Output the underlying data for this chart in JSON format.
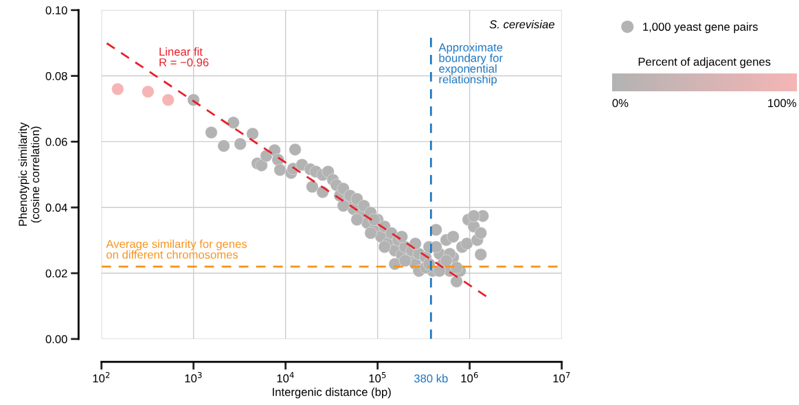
{
  "chart_data": {
    "type": "scatter",
    "xlabel": "Intergenic distance (bp)",
    "ylabel": "Phenotypic similarity\n(cosine correlation)",
    "clabel": "Percent of adjacent genes",
    "annotations": [
      "S. cerevisiae",
      "380 kb"
    ],
    "log": "x",
    "grid": true,
    "legend": "top right",
    "xlim": [
      100,
      10000000
    ],
    "ylim": [
      0,
      0.1
    ],
    "xticks": [
      {
        "value": 100,
        "label": "10$^{2}$"
      },
      {
        "value": 1000,
        "label": "10$^{3}$"
      },
      {
        "value": 10000,
        "label": "10$^{4}$"
      },
      {
        "value": 100000,
        "label": "10$^{5}$"
      },
      {
        "value": 1000000,
        "label": "10$^{6}$"
      },
      {
        "value": 10000000,
        "label": "10$^{7}$"
      }
    ],
    "yticks": [
      {
        "value": 0,
        "label": "0.00"
      },
      {
        "value": 0.02,
        "label": "0.02"
      },
      {
        "value": 0.04,
        "label": "0.04"
      },
      {
        "value": 0.06,
        "label": "0.06"
      },
      {
        "value": 0.08,
        "label": "0.08"
      },
      {
        "value": 0.1,
        "label": "0.10"
      }
    ],
    "clim": [
      0,
      100
    ],
    "cticks": [
      {
        "value": 0,
        "label": "0%"
      },
      {
        "value": 100,
        "label": "100%"
      }
    ],
    "ref_lines": [
      {
        "axis": "y",
        "value": 0.022,
        "label": "Average similarity for genes\non different chromosomes",
        "color": "#f7941d",
        "line_style": "dashed"
      },
      {
        "axis": "x",
        "value": 380000,
        "label": "Approximate\nboundary for\nexponential\nrelationship",
        "color": "#1f78c1",
        "line_style": "dashed"
      }
    ],
    "series": [
      {
        "name": "1,000 yeast gene pairs",
        "marker": "circle",
        "colors": [
          "#f5b5b5",
          "#f5b5b5",
          "#f5b5b5",
          "#b3b3b3",
          "#b3b3b3",
          "#b3b3b3",
          "#b3b3b3",
          "#b3b3b3",
          "#b3b3b3",
          "#b3b3b3",
          "#b3b3b3",
          "#b3b3b3",
          "#b3b3b3",
          "#b3b3b3",
          "#b3b3b3",
          "#b3b3b3",
          "#b3b3b3",
          "#b3b3b3",
          "#b3b3b3",
          "#b3b3b3",
          "#b3b3b3",
          "#b3b3b3",
          "#b3b3b3",
          "#b3b3b3",
          "#b3b3b3",
          "#b3b3b3",
          "#b3b3b3",
          "#b3b3b3",
          "#b3b3b3",
          "#b3b3b3",
          "#b3b3b3",
          "#b3b3b3",
          "#b3b3b3",
          "#b3b3b3",
          "#b3b3b3",
          "#b3b3b3",
          "#b3b3b3",
          "#b3b3b3",
          "#b3b3b3",
          "#b3b3b3",
          "#b3b3b3",
          "#b3b3b3",
          "#b3b3b3",
          "#b3b3b3",
          "#b3b3b3",
          "#b3b3b3",
          "#b3b3b3",
          "#b3b3b3",
          "#b3b3b3",
          "#b3b3b3",
          "#b3b3b3",
          "#b3b3b3",
          "#b3b3b3",
          "#b3b3b3",
          "#b3b3b3",
          "#b3b3b3",
          "#b3b3b3",
          "#b3b3b3",
          "#b3b3b3",
          "#b3b3b3",
          "#b3b3b3",
          "#b3b3b3",
          "#b3b3b3",
          "#b3b3b3",
          "#b3b3b3",
          "#b3b3b3",
          "#b3b3b3",
          "#b3b3b3",
          "#b3b3b3",
          "#b3b3b3",
          "#b3b3b3",
          "#b3b3b3",
          "#b3b3b3",
          "#b3b3b3",
          "#b3b3b3",
          "#b3b3b3",
          "#b3b3b3",
          "#b3b3b3",
          "#b3b3b3",
          "#b3b3b3",
          "#b3b3b3",
          "#b3b3b3",
          "#b3b3b3",
          "#b3b3b3",
          "#b3b3b3",
          "#b3b3b3",
          "#b3b3b3",
          "#b3b3b3",
          "#b3b3b3"
        ],
        "x": [
          150,
          320,
          530,
          1000,
          1560,
          2130,
          2710,
          3220,
          4380,
          4940,
          5480,
          6180,
          7600,
          8280,
          8710,
          11500,
          12700,
          12100,
          15100,
          18600,
          21300,
          25300,
          29000,
          32700,
          19500,
          25300,
          35700,
          38900,
          42400,
          46200,
          50200,
          54800,
          59700,
          65000,
          71000,
          77300,
          84200,
          91800,
          100000,
          109000,
          119000,
          129000,
          141000,
          154000,
          167000,
          183000,
          199000,
          217000,
          236000,
          257000,
          281000,
          333000,
          363000,
          396000,
          431000,
          470000,
          512000,
          557000,
          608000,
          662000,
          721000,
          787000,
          828000,
          933000,
          966000,
          1110000,
          1210000,
          1320000,
          1390000,
          1110000,
          1320000,
          154000,
          199000,
          281000,
          333000,
          470000,
          608000,
          431000,
          721000,
          84200,
          59700,
          42400,
          119000,
          91800,
          183000,
          257000,
          363000,
          557000,
          662000
        ],
        "values": [
          0.076,
          0.0752,
          0.0727,
          0.0727,
          0.0628,
          0.0587,
          0.0658,
          0.0593,
          0.0624,
          0.0534,
          0.0528,
          0.0557,
          0.0574,
          0.0545,
          0.0514,
          0.0505,
          0.0576,
          0.0518,
          0.053,
          0.0516,
          0.0509,
          0.0499,
          0.0509,
          0.0484,
          0.0463,
          0.0447,
          0.0468,
          0.0436,
          0.0457,
          0.0415,
          0.0436,
          0.0395,
          0.0426,
          0.0374,
          0.0405,
          0.0353,
          0.0384,
          0.0332,
          0.0363,
          0.0311,
          0.0342,
          0.029,
          0.0322,
          0.0269,
          0.0301,
          0.0255,
          0.028,
          0.0242,
          0.0269,
          0.0228,
          0.0259,
          0.0248,
          0.028,
          0.0207,
          0.0332,
          0.0259,
          0.0228,
          0.0301,
          0.0207,
          0.0248,
          0.0175,
          0.0207,
          0.028,
          0.029,
          0.0363,
          0.0342,
          0.0301,
          0.0257,
          0.0374,
          0.0374,
          0.0322,
          0.0228,
          0.0238,
          0.0207,
          0.0217,
          0.0207,
          0.0259,
          0.028,
          0.0217,
          0.0322,
          0.0363,
          0.0405,
          0.028,
          0.0363,
          0.0311,
          0.029,
          0.0228,
          0.0238,
          0.0311
        ],
        "cvalues": [
          100,
          100,
          100,
          0,
          0,
          0,
          0,
          0,
          0,
          0,
          0,
          0,
          0,
          0,
          0,
          0,
          0,
          0,
          0,
          0,
          0,
          0,
          0,
          0,
          0,
          0,
          0,
          0,
          0,
          0,
          0,
          0,
          0,
          0,
          0,
          0,
          0,
          0,
          0,
          0,
          0,
          0,
          0,
          0,
          0,
          0,
          0,
          0,
          0,
          0,
          0,
          0,
          0,
          0,
          0,
          0,
          0,
          0,
          0,
          0,
          0,
          0,
          0,
          0,
          0,
          0,
          0,
          0,
          0,
          0,
          0,
          0,
          0,
          0,
          0,
          0,
          0,
          0,
          0,
          0,
          0,
          0,
          0,
          0,
          0,
          0,
          0,
          0,
          0
        ]
      },
      {
        "name": "Linear fit\nR = −0.96",
        "type": "line",
        "color": "#e8202a",
        "line_style": "dashed",
        "marker": "none",
        "x": [
          100,
          1510000
        ],
        "values": [
          0.091,
          0.013
        ]
      }
    ]
  }
}
